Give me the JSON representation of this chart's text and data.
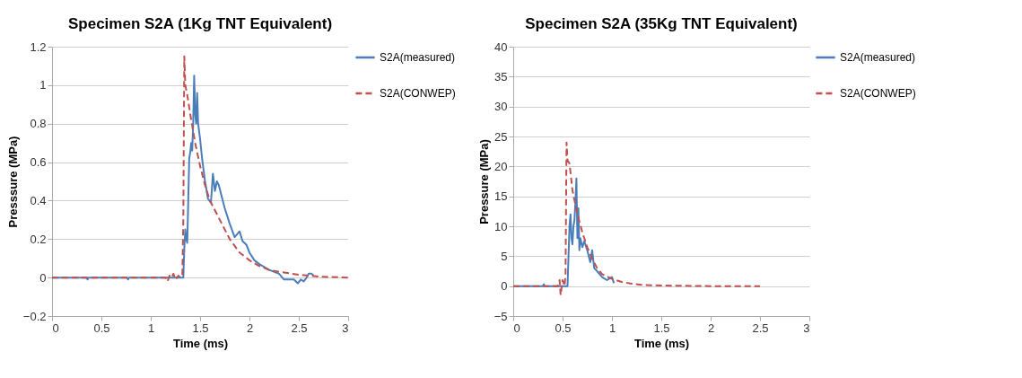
{
  "chart_data": [
    {
      "type": "line",
      "title": "Specimen S2A (1Kg TNT Equivalent)",
      "xlabel": "Time (ms)",
      "ylabel": "Presssure (MPa)",
      "xlim": [
        0,
        3
      ],
      "xticks": [
        0,
        0.5,
        1,
        1.5,
        2,
        2.5,
        3
      ],
      "ylim": [
        -0.2,
        1.2
      ],
      "yticks": [
        -0.2,
        0,
        0.2,
        0.4,
        0.6,
        0.8,
        1,
        1.2
      ],
      "grid": "y",
      "legend": "right",
      "series": [
        {
          "name": "S2A(measured)",
          "color": "#4a7ebb",
          "line_style": "solid",
          "x": [
            0,
            0.35,
            0.36,
            0.37,
            0.76,
            0.77,
            0.78,
            1.1,
            1.33,
            1.34,
            1.35,
            1.36,
            1.37,
            1.38,
            1.39,
            1.4,
            1.41,
            1.42,
            1.43,
            1.44,
            1.45,
            1.46,
            1.47,
            1.48,
            1.5,
            1.52,
            1.55,
            1.58,
            1.61,
            1.63,
            1.65,
            1.67,
            1.69,
            1.72,
            1.75,
            1.8,
            1.85,
            1.9,
            1.93,
            1.97,
            2.0,
            2.05,
            2.1,
            2.2,
            2.3,
            2.35,
            2.45,
            2.49,
            2.52,
            2.55,
            2.58,
            2.6,
            2.63,
            2.65
          ],
          "values": [
            0,
            0,
            -0.01,
            0,
            0,
            -0.01,
            0,
            0,
            0,
            0.15,
            0.25,
            0.2,
            0.18,
            0.4,
            0.62,
            0.65,
            0.7,
            0.66,
            0.8,
            1.05,
            0.85,
            0.8,
            0.96,
            0.8,
            0.72,
            0.62,
            0.5,
            0.41,
            0.39,
            0.54,
            0.45,
            0.5,
            0.48,
            0.42,
            0.36,
            0.28,
            0.21,
            0.24,
            0.19,
            0.17,
            0.13,
            0.09,
            0.07,
            0.04,
            0.02,
            -0.01,
            -0.01,
            -0.03,
            -0.01,
            -0.02,
            0,
            0.02,
            0.02,
            0.01
          ]
        },
        {
          "name": "S2A(CONWEP)",
          "color": "#c0504d",
          "line_style": "dashed",
          "x": [
            0,
            1.15,
            1.17,
            1.19,
            1.21,
            1.23,
            1.25,
            1.28,
            1.3,
            1.32,
            1.33,
            1.34,
            1.35,
            1.37,
            1.4,
            1.45,
            1.5,
            1.55,
            1.6,
            1.7,
            1.8,
            1.9,
            2.0,
            2.1,
            2.2,
            2.3,
            2.5,
            2.7,
            3.0
          ],
          "values": [
            0,
            0,
            -0.02,
            0.01,
            0,
            0.02,
            -0.01,
            0.01,
            0,
            0.01,
            0.3,
            1.15,
            1.0,
            0.95,
            0.85,
            0.7,
            0.58,
            0.48,
            0.4,
            0.3,
            0.2,
            0.13,
            0.09,
            0.06,
            0.04,
            0.03,
            0.015,
            0.005,
            0
          ]
        }
      ]
    },
    {
      "type": "line",
      "title": "Specimen S2A (35Kg TNT Equivalent)",
      "xlabel": "Time (ms)",
      "ylabel": "Pressure (MPa)",
      "xlim": [
        0,
        3
      ],
      "xticks": [
        0,
        0.5,
        1,
        1.5,
        2,
        2.5,
        3
      ],
      "ylim": [
        -5,
        40
      ],
      "yticks": [
        -5,
        0,
        5,
        10,
        15,
        20,
        25,
        30,
        35,
        40
      ],
      "grid": "y",
      "legend": "right",
      "series": [
        {
          "name": "S2A(measured)",
          "color": "#4a7ebb",
          "line_style": "solid",
          "x": [
            0,
            0.3,
            0.31,
            0.32,
            0.55,
            0.56,
            0.57,
            0.58,
            0.59,
            0.6,
            0.61,
            0.62,
            0.63,
            0.64,
            0.65,
            0.66,
            0.67,
            0.68,
            0.7,
            0.72,
            0.75,
            0.78,
            0.8,
            0.82,
            0.85,
            0.9,
            0.95,
            1.0,
            1.02
          ],
          "values": [
            0,
            0,
            0.3,
            0,
            0,
            5,
            10,
            12,
            8,
            7,
            10,
            11,
            14,
            18,
            8,
            13,
            6,
            8,
            6.5,
            7.5,
            6,
            4,
            6,
            3,
            2.5,
            1.5,
            1,
            1.5,
            0.5
          ]
        },
        {
          "name": "S2A(CONWEP)",
          "color": "#c0504d",
          "line_style": "dashed",
          "x": [
            0,
            0.45,
            0.47,
            0.48,
            0.5,
            0.52,
            0.53,
            0.54,
            0.55,
            0.57,
            0.6,
            0.65,
            0.7,
            0.75,
            0.8,
            0.85,
            0.9,
            1.0,
            1.1,
            1.2,
            1.3,
            1.5,
            2.0,
            2.5
          ],
          "values": [
            0,
            0,
            1,
            -1.5,
            1,
            0,
            2,
            24,
            21,
            20.5,
            16,
            12,
            9,
            6.5,
            4.5,
            3,
            2,
            1.2,
            0.7,
            0.4,
            0.2,
            0.1,
            0,
            0
          ]
        }
      ]
    }
  ]
}
